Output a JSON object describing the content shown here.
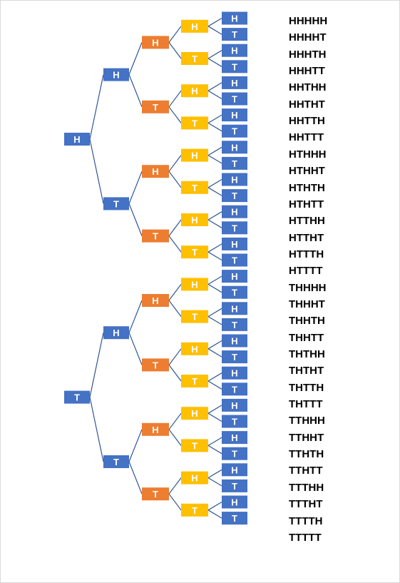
{
  "colors": {
    "level0": "#4472c4",
    "level1": "#4472c4",
    "level2": "#ed7d31",
    "level3": "#ffc000",
    "level4": "#4472c4",
    "line": "#2f5597",
    "text": "#ffffff"
  },
  "tree": {
    "label": "",
    "children": [
      {
        "label": "H",
        "children": [
          {
            "label": "H",
            "children": [
              {
                "label": "H",
                "children": [
                  {
                    "label": "H",
                    "children": [
                      {
                        "label": "H"
                      },
                      {
                        "label": "T"
                      }
                    ]
                  },
                  {
                    "label": "T",
                    "children": [
                      {
                        "label": "H"
                      },
                      {
                        "label": "T"
                      }
                    ]
                  }
                ]
              },
              {
                "label": "T",
                "children": [
                  {
                    "label": "H",
                    "children": [
                      {
                        "label": "H"
                      },
                      {
                        "label": "T"
                      }
                    ]
                  },
                  {
                    "label": "T",
                    "children": [
                      {
                        "label": "H"
                      },
                      {
                        "label": "T"
                      }
                    ]
                  }
                ]
              }
            ]
          },
          {
            "label": "T",
            "children": [
              {
                "label": "H",
                "children": [
                  {
                    "label": "H",
                    "children": [
                      {
                        "label": "H"
                      },
                      {
                        "label": "T"
                      }
                    ]
                  },
                  {
                    "label": "T",
                    "children": [
                      {
                        "label": "H"
                      },
                      {
                        "label": "T"
                      }
                    ]
                  }
                ]
              },
              {
                "label": "T",
                "children": [
                  {
                    "label": "H",
                    "children": [
                      {
                        "label": "H"
                      },
                      {
                        "label": "T"
                      }
                    ]
                  },
                  {
                    "label": "T",
                    "children": [
                      {
                        "label": "H"
                      },
                      {
                        "label": "T"
                      }
                    ]
                  }
                ]
              }
            ]
          }
        ]
      },
      {
        "label": "T",
        "children": [
          {
            "label": "H",
            "children": [
              {
                "label": "H",
                "children": [
                  {
                    "label": "H",
                    "children": [
                      {
                        "label": "H"
                      },
                      {
                        "label": "T"
                      }
                    ]
                  },
                  {
                    "label": "T",
                    "children": [
                      {
                        "label": "H"
                      },
                      {
                        "label": "T"
                      }
                    ]
                  }
                ]
              },
              {
                "label": "T",
                "children": [
                  {
                    "label": "H",
                    "children": [
                      {
                        "label": "H"
                      },
                      {
                        "label": "T"
                      }
                    ]
                  },
                  {
                    "label": "T",
                    "children": [
                      {
                        "label": "H"
                      },
                      {
                        "label": "T"
                      }
                    ]
                  }
                ]
              }
            ]
          },
          {
            "label": "T",
            "children": [
              {
                "label": "H",
                "children": [
                  {
                    "label": "H",
                    "children": [
                      {
                        "label": "H"
                      },
                      {
                        "label": "T"
                      }
                    ]
                  },
                  {
                    "label": "T",
                    "children": [
                      {
                        "label": "H"
                      },
                      {
                        "label": "T"
                      }
                    ]
                  }
                ]
              },
              {
                "label": "T",
                "children": [
                  {
                    "label": "H",
                    "children": [
                      {
                        "label": "H"
                      },
                      {
                        "label": "T"
                      }
                    ]
                  },
                  {
                    "label": "T",
                    "children": [
                      {
                        "label": "H"
                      },
                      {
                        "label": "T"
                      }
                    ]
                  }
                ]
              }
            ]
          }
        ]
      }
    ]
  },
  "outcomes": [
    "HHHHH",
    "HHHHT",
    "HHHTH",
    "HHHTT",
    "HHTHH",
    "HHTHT",
    "HHTTH",
    "HHTTT",
    "HTHHH",
    "HTHHT",
    "HTHTH",
    "HTHTT",
    "HTTHH",
    "HTTHT",
    "HTTTH",
    "HTTTT",
    "THHHH",
    "THHHT",
    "THHTH",
    "THHTT",
    "THTHH",
    "THTHT",
    "THTTH",
    "THTTT",
    "TTHHH",
    "TTHHT",
    "TTHTH",
    "TTHTT",
    "TTTHH",
    "TTTHT",
    "TTTTH",
    "TTTTT"
  ]
}
